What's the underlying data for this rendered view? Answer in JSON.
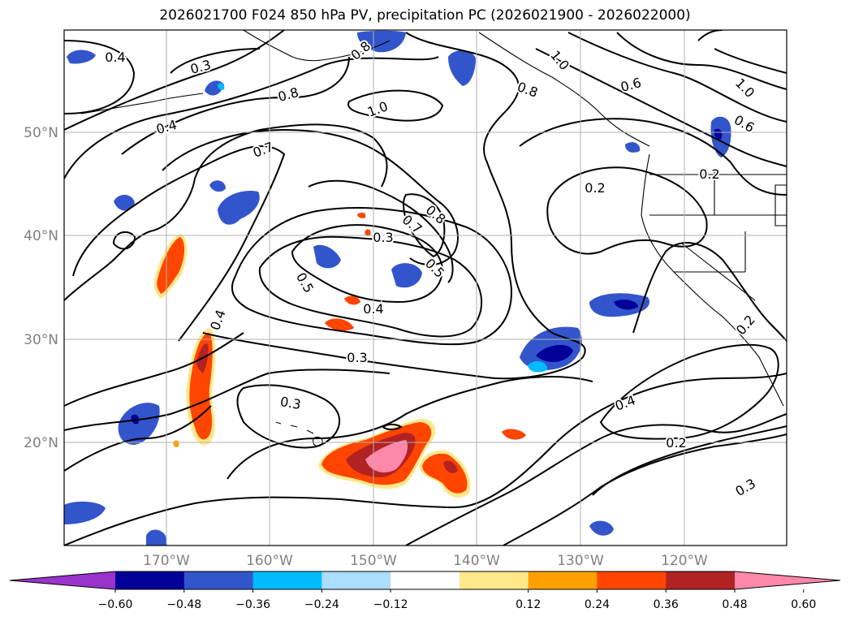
{
  "title": "2026021700 F024 850 hPa PV, precipitation PC (2026021900 - 2026022000)",
  "map": {
    "lat_ticks": [
      "50°N",
      "40°N",
      "30°N",
      "20°N"
    ],
    "lon_ticks": [
      "170°W",
      "160°W",
      "150°W",
      "140°W",
      "130°W",
      "120°W"
    ],
    "gridlines": true,
    "tick_label_color": "#808080"
  },
  "contour_labels": [
    "0.4",
    "0.3",
    "0.8",
    "0.8",
    "1.0",
    "1.0",
    "0.8",
    "0.6",
    "1.0",
    "0.6",
    "0.4",
    "0.7",
    "0.2",
    "0.2",
    "0.8",
    "0.7",
    "0.3",
    "0.5",
    "0.5",
    "0.4",
    "0.4",
    "0.3",
    "0.3",
    "0.4",
    "0.2",
    "0.3",
    "0.2"
  ],
  "colorbar": {
    "colors": [
      "#9933cc",
      "#000099",
      "#3355cc",
      "#00bbff",
      "#aaddff",
      "#ffffff",
      "#ffe88a",
      "#ffa000",
      "#ff4500",
      "#b22222",
      "#ff88aa"
    ],
    "tick_labels": [
      "−0.60",
      "−0.48",
      "−0.36",
      "−0.24",
      "−0.12",
      "0.12",
      "0.24",
      "0.36",
      "0.48",
      "0.60"
    ],
    "extend": "both"
  },
  "precip_colors": {
    "neg1": "#aaddff",
    "neg2": "#00bbff",
    "neg3": "#3355cc",
    "neg4": "#000099",
    "pos1": "#ffe88a",
    "pos2": "#ffa000",
    "pos3": "#ff4500",
    "pos4": "#b22222",
    "pos5": "#ff88aa"
  }
}
